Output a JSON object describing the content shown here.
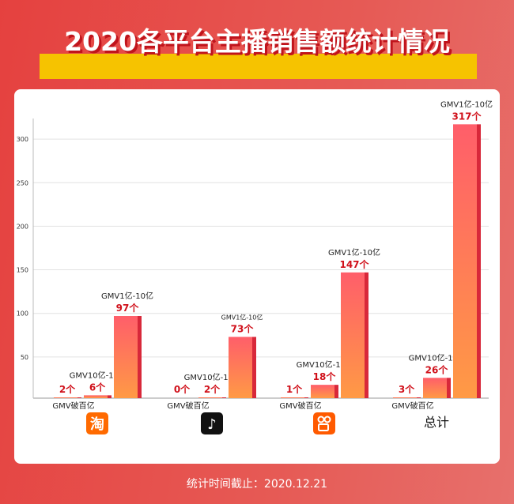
{
  "title": "2020各平台主播销售额统计情况",
  "footer": "统计时间截止：2020.12.21",
  "colors": {
    "bar_top": "#ff5e6a",
    "bar_bottom": "#ff9a45",
    "bar_side": "#d8283a",
    "value_label": "#d0101a",
    "title_band": "#f6c300"
  },
  "chart_data": {
    "type": "bar",
    "categories": [
      "淘宝",
      "抖音",
      "快手",
      "总计"
    ],
    "category_icons": [
      "taobao-icon",
      "douyin-icon",
      "kuaishou-icon",
      null
    ],
    "series": [
      {
        "name": "GMV破百亿",
        "values": [
          2,
          0,
          1,
          3
        ]
      },
      {
        "name": "GMV10亿-100亿",
        "values": [
          6,
          2,
          18,
          26
        ]
      },
      {
        "name": "GMV1亿-10亿",
        "values": [
          97,
          73,
          147,
          317
        ]
      }
    ],
    "value_labels": [
      [
        "2个",
        "6个",
        "97个"
      ],
      [
        "0个",
        "2个",
        "73个"
      ],
      [
        "1个",
        "18个",
        "147个"
      ],
      [
        "3个",
        "26个",
        "317个"
      ]
    ],
    "yticks": [
      50,
      100,
      150,
      200,
      250,
      300
    ],
    "ylim": [
      0,
      330
    ],
    "grid": true,
    "total_label": "总计"
  }
}
